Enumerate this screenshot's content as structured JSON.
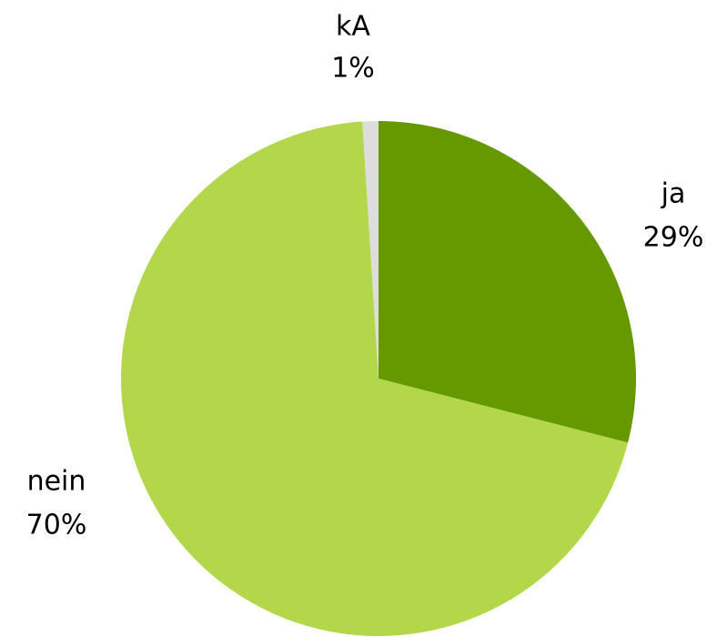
{
  "chart_data": {
    "type": "pie",
    "categories": [
      "ja",
      "nein",
      "kA"
    ],
    "values": [
      29,
      70,
      1
    ],
    "value_labels": [
      "29%",
      "70%",
      "1%"
    ],
    "colors": [
      "#669900",
      "#b3d64a",
      "#dddddd"
    ]
  }
}
